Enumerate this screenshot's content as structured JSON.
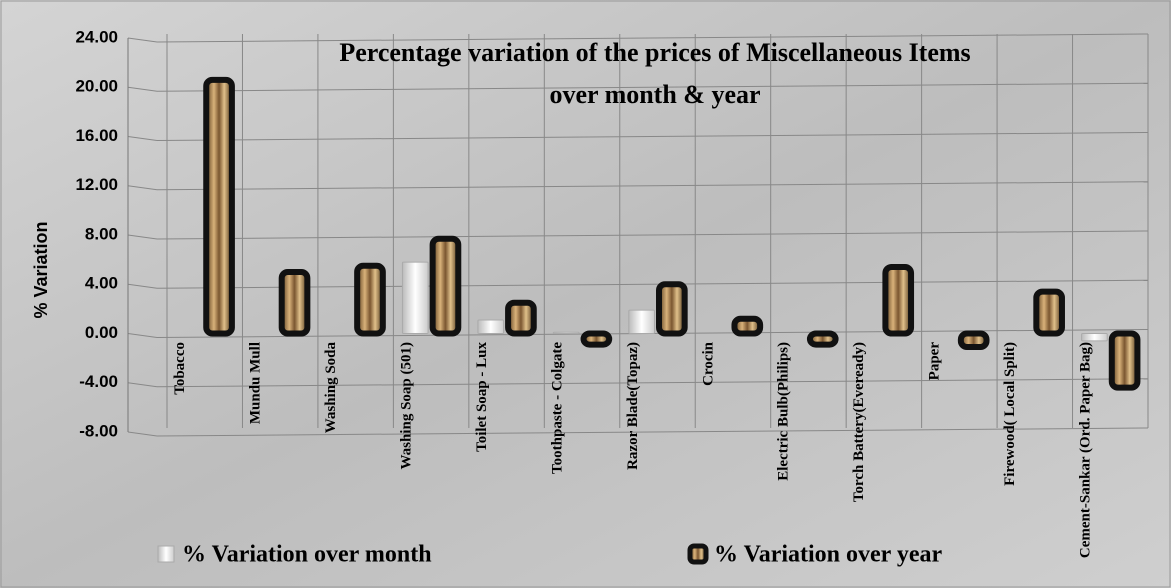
{
  "chart_data": {
    "type": "bar",
    "title": "Percentage variation of the prices of Miscellaneous Items",
    "subtitle": "over month & year",
    "y_label": "% Variation",
    "categories": [
      "Tobacco",
      "Mundu Mull",
      "Washing Soda",
      "Washing Soap (501)",
      "Toilet Soap - Lux",
      "Toothpaste - Colgate",
      "Razor Blade(Topaz)",
      "Crocin",
      "Electric Bulb(Philips)",
      "Torch Battery(Eveready)",
      "Paper",
      "Firewood( Local Split)",
      "Cement-Sankar (Ord. Paper Bag)"
    ],
    "series": [
      {
        "name": "% Variation over month",
        "color": "#e8e8e8",
        "values": [
          0,
          0,
          0,
          5.8,
          1.1,
          0.1,
          1.9,
          0,
          0,
          0,
          0,
          0,
          -0.6
        ]
      },
      {
        "name": "% Variation over year",
        "color": "#b08a5a",
        "values": [
          20.6,
          5.0,
          5.5,
          7.7,
          2.5,
          -0.9,
          4.0,
          1.2,
          -0.9,
          5.4,
          -1.1,
          3.4,
          -4.4
        ]
      }
    ],
    "ylim": [
      -8,
      24
    ],
    "yticks": [
      {
        "value": -8,
        "label": "-8.00"
      },
      {
        "value": -4,
        "label": "-4.00"
      },
      {
        "value": 0,
        "label": "0.00"
      },
      {
        "value": 4,
        "label": "4.00"
      },
      {
        "value": 8,
        "label": "8.00"
      },
      {
        "value": 12,
        "label": "12.00"
      },
      {
        "value": 16,
        "label": "16.00"
      },
      {
        "value": 20,
        "label": "20.00"
      },
      {
        "value": 24,
        "label": "24.00"
      }
    ],
    "grid": true,
    "legend": "bottom"
  }
}
